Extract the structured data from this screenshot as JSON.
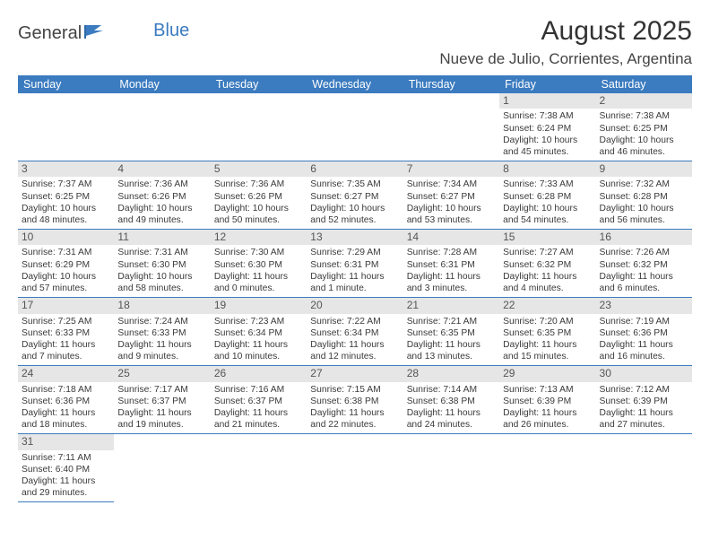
{
  "logo": {
    "text1": "General",
    "text2": "Blue"
  },
  "title": "August 2025",
  "location": "Nueve de Julio, Corrientes, Argentina",
  "colors": {
    "header_bg": "#3b7bbf",
    "header_fg": "#ffffff",
    "daynum_bg": "#e6e6e6",
    "border": "#3b7bbf"
  },
  "font": {
    "body_pt": 10.3,
    "daynum_pt": 12,
    "weekday_pt": 12.5,
    "title_pt": 30,
    "location_pt": 17
  },
  "weekdays": [
    "Sunday",
    "Monday",
    "Tuesday",
    "Wednesday",
    "Thursday",
    "Friday",
    "Saturday"
  ],
  "weeks": [
    [
      null,
      null,
      null,
      null,
      null,
      {
        "n": "1",
        "sr": "Sunrise: 7:38 AM",
        "ss": "Sunset: 6:24 PM",
        "dl": "Daylight: 10 hours and 45 minutes."
      },
      {
        "n": "2",
        "sr": "Sunrise: 7:38 AM",
        "ss": "Sunset: 6:25 PM",
        "dl": "Daylight: 10 hours and 46 minutes."
      }
    ],
    [
      {
        "n": "3",
        "sr": "Sunrise: 7:37 AM",
        "ss": "Sunset: 6:25 PM",
        "dl": "Daylight: 10 hours and 48 minutes."
      },
      {
        "n": "4",
        "sr": "Sunrise: 7:36 AM",
        "ss": "Sunset: 6:26 PM",
        "dl": "Daylight: 10 hours and 49 minutes."
      },
      {
        "n": "5",
        "sr": "Sunrise: 7:36 AM",
        "ss": "Sunset: 6:26 PM",
        "dl": "Daylight: 10 hours and 50 minutes."
      },
      {
        "n": "6",
        "sr": "Sunrise: 7:35 AM",
        "ss": "Sunset: 6:27 PM",
        "dl": "Daylight: 10 hours and 52 minutes."
      },
      {
        "n": "7",
        "sr": "Sunrise: 7:34 AM",
        "ss": "Sunset: 6:27 PM",
        "dl": "Daylight: 10 hours and 53 minutes."
      },
      {
        "n": "8",
        "sr": "Sunrise: 7:33 AM",
        "ss": "Sunset: 6:28 PM",
        "dl": "Daylight: 10 hours and 54 minutes."
      },
      {
        "n": "9",
        "sr": "Sunrise: 7:32 AM",
        "ss": "Sunset: 6:28 PM",
        "dl": "Daylight: 10 hours and 56 minutes."
      }
    ],
    [
      {
        "n": "10",
        "sr": "Sunrise: 7:31 AM",
        "ss": "Sunset: 6:29 PM",
        "dl": "Daylight: 10 hours and 57 minutes."
      },
      {
        "n": "11",
        "sr": "Sunrise: 7:31 AM",
        "ss": "Sunset: 6:30 PM",
        "dl": "Daylight: 10 hours and 58 minutes."
      },
      {
        "n": "12",
        "sr": "Sunrise: 7:30 AM",
        "ss": "Sunset: 6:30 PM",
        "dl": "Daylight: 11 hours and 0 minutes."
      },
      {
        "n": "13",
        "sr": "Sunrise: 7:29 AM",
        "ss": "Sunset: 6:31 PM",
        "dl": "Daylight: 11 hours and 1 minute."
      },
      {
        "n": "14",
        "sr": "Sunrise: 7:28 AM",
        "ss": "Sunset: 6:31 PM",
        "dl": "Daylight: 11 hours and 3 minutes."
      },
      {
        "n": "15",
        "sr": "Sunrise: 7:27 AM",
        "ss": "Sunset: 6:32 PM",
        "dl": "Daylight: 11 hours and 4 minutes."
      },
      {
        "n": "16",
        "sr": "Sunrise: 7:26 AM",
        "ss": "Sunset: 6:32 PM",
        "dl": "Daylight: 11 hours and 6 minutes."
      }
    ],
    [
      {
        "n": "17",
        "sr": "Sunrise: 7:25 AM",
        "ss": "Sunset: 6:33 PM",
        "dl": "Daylight: 11 hours and 7 minutes."
      },
      {
        "n": "18",
        "sr": "Sunrise: 7:24 AM",
        "ss": "Sunset: 6:33 PM",
        "dl": "Daylight: 11 hours and 9 minutes."
      },
      {
        "n": "19",
        "sr": "Sunrise: 7:23 AM",
        "ss": "Sunset: 6:34 PM",
        "dl": "Daylight: 11 hours and 10 minutes."
      },
      {
        "n": "20",
        "sr": "Sunrise: 7:22 AM",
        "ss": "Sunset: 6:34 PM",
        "dl": "Daylight: 11 hours and 12 minutes."
      },
      {
        "n": "21",
        "sr": "Sunrise: 7:21 AM",
        "ss": "Sunset: 6:35 PM",
        "dl": "Daylight: 11 hours and 13 minutes."
      },
      {
        "n": "22",
        "sr": "Sunrise: 7:20 AM",
        "ss": "Sunset: 6:35 PM",
        "dl": "Daylight: 11 hours and 15 minutes."
      },
      {
        "n": "23",
        "sr": "Sunrise: 7:19 AM",
        "ss": "Sunset: 6:36 PM",
        "dl": "Daylight: 11 hours and 16 minutes."
      }
    ],
    [
      {
        "n": "24",
        "sr": "Sunrise: 7:18 AM",
        "ss": "Sunset: 6:36 PM",
        "dl": "Daylight: 11 hours and 18 minutes."
      },
      {
        "n": "25",
        "sr": "Sunrise: 7:17 AM",
        "ss": "Sunset: 6:37 PM",
        "dl": "Daylight: 11 hours and 19 minutes."
      },
      {
        "n": "26",
        "sr": "Sunrise: 7:16 AM",
        "ss": "Sunset: 6:37 PM",
        "dl": "Daylight: 11 hours and 21 minutes."
      },
      {
        "n": "27",
        "sr": "Sunrise: 7:15 AM",
        "ss": "Sunset: 6:38 PM",
        "dl": "Daylight: 11 hours and 22 minutes."
      },
      {
        "n": "28",
        "sr": "Sunrise: 7:14 AM",
        "ss": "Sunset: 6:38 PM",
        "dl": "Daylight: 11 hours and 24 minutes."
      },
      {
        "n": "29",
        "sr": "Sunrise: 7:13 AM",
        "ss": "Sunset: 6:39 PM",
        "dl": "Daylight: 11 hours and 26 minutes."
      },
      {
        "n": "30",
        "sr": "Sunrise: 7:12 AM",
        "ss": "Sunset: 6:39 PM",
        "dl": "Daylight: 11 hours and 27 minutes."
      }
    ],
    [
      {
        "n": "31",
        "sr": "Sunrise: 7:11 AM",
        "ss": "Sunset: 6:40 PM",
        "dl": "Daylight: 11 hours and 29 minutes."
      },
      null,
      null,
      null,
      null,
      null,
      null
    ]
  ]
}
